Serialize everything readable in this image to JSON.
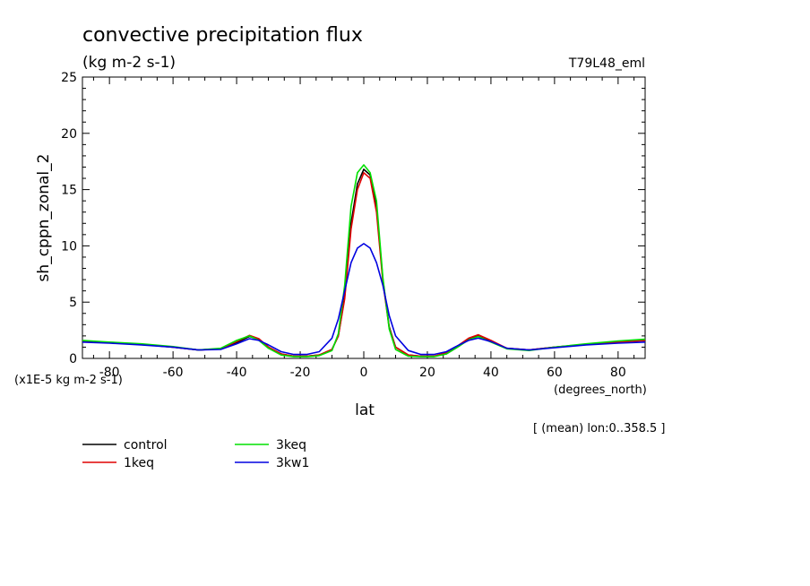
{
  "chart_data": {
    "type": "line",
    "title": "convective precipitation flux",
    "subtitle": "(kg m-2 s-1)",
    "run_label": "T79L48_eml",
    "ylabel": "sh_cppn_zonal_2",
    "xlabel": "lat",
    "x_unit": "(degrees_north)",
    "y_unit": "(x1E-5 kg m-2 s-1)",
    "averaging_note": "[ (mean) lon:0..358.5 ]",
    "xlim": [
      -88.5,
      88.5
    ],
    "ylim": [
      0,
      25
    ],
    "x_ticks": [
      -80,
      -60,
      -40,
      -20,
      0,
      20,
      40,
      60,
      80
    ],
    "x_tick_labels": [
      "-80",
      "-60",
      "-40",
      "-20",
      "0",
      "20",
      "40",
      "60",
      "80"
    ],
    "y_ticks": [
      0,
      5,
      10,
      15,
      20,
      25
    ],
    "y_tick_labels": [
      "0",
      "5",
      "10",
      "15",
      "20",
      "25"
    ],
    "grid": false,
    "legend_position": "bottom-left",
    "x": [
      -88.5,
      -80,
      -70,
      -60,
      -52,
      -45,
      -40,
      -36,
      -33,
      -30,
      -26,
      -22,
      -18,
      -14,
      -10,
      -8,
      -6,
      -4,
      -2,
      0,
      2,
      4,
      6,
      8,
      10,
      14,
      18,
      22,
      26,
      30,
      33,
      36,
      40,
      45,
      52,
      60,
      70,
      80,
      88.5
    ],
    "series": [
      {
        "name": "control",
        "color": "#000000",
        "values": [
          1.5,
          1.4,
          1.25,
          1.0,
          0.75,
          0.85,
          1.4,
          1.95,
          1.7,
          1.0,
          0.4,
          0.2,
          0.2,
          0.3,
          0.8,
          2.0,
          5.5,
          12.0,
          15.5,
          16.8,
          16.3,
          13.5,
          7.0,
          2.8,
          1.0,
          0.3,
          0.2,
          0.2,
          0.4,
          1.1,
          1.7,
          2.0,
          1.5,
          0.9,
          0.75,
          1.0,
          1.25,
          1.45,
          1.6
        ]
      },
      {
        "name": "1keq",
        "color": "#e00000",
        "values": [
          1.5,
          1.4,
          1.25,
          1.0,
          0.75,
          0.85,
          1.5,
          2.05,
          1.75,
          1.0,
          0.4,
          0.2,
          0.2,
          0.3,
          0.8,
          2.0,
          5.3,
          11.5,
          15.0,
          16.5,
          16.0,
          13.0,
          6.8,
          2.7,
          1.0,
          0.3,
          0.2,
          0.2,
          0.5,
          1.2,
          1.8,
          2.1,
          1.6,
          0.9,
          0.75,
          1.0,
          1.25,
          1.45,
          1.6
        ]
      },
      {
        "name": "3keq",
        "color": "#00e000",
        "values": [
          1.6,
          1.45,
          1.3,
          1.05,
          0.75,
          0.9,
          1.6,
          2.0,
          1.6,
          0.9,
          0.3,
          0.15,
          0.15,
          0.25,
          0.7,
          2.2,
          6.5,
          13.5,
          16.5,
          17.2,
          16.5,
          14.0,
          7.2,
          2.6,
          0.8,
          0.2,
          0.15,
          0.15,
          0.4,
          1.1,
          1.65,
          1.95,
          1.45,
          0.85,
          0.7,
          1.0,
          1.3,
          1.55,
          1.7
        ]
      },
      {
        "name": "3kw1",
        "color": "#0000e0",
        "values": [
          1.45,
          1.35,
          1.2,
          1.0,
          0.75,
          0.8,
          1.3,
          1.75,
          1.6,
          1.2,
          0.6,
          0.35,
          0.35,
          0.6,
          1.8,
          3.5,
          6.0,
          8.5,
          9.8,
          10.2,
          9.8,
          8.5,
          6.5,
          3.8,
          2.0,
          0.7,
          0.35,
          0.35,
          0.6,
          1.2,
          1.6,
          1.8,
          1.5,
          0.9,
          0.75,
          0.95,
          1.2,
          1.35,
          1.45
        ]
      }
    ]
  }
}
